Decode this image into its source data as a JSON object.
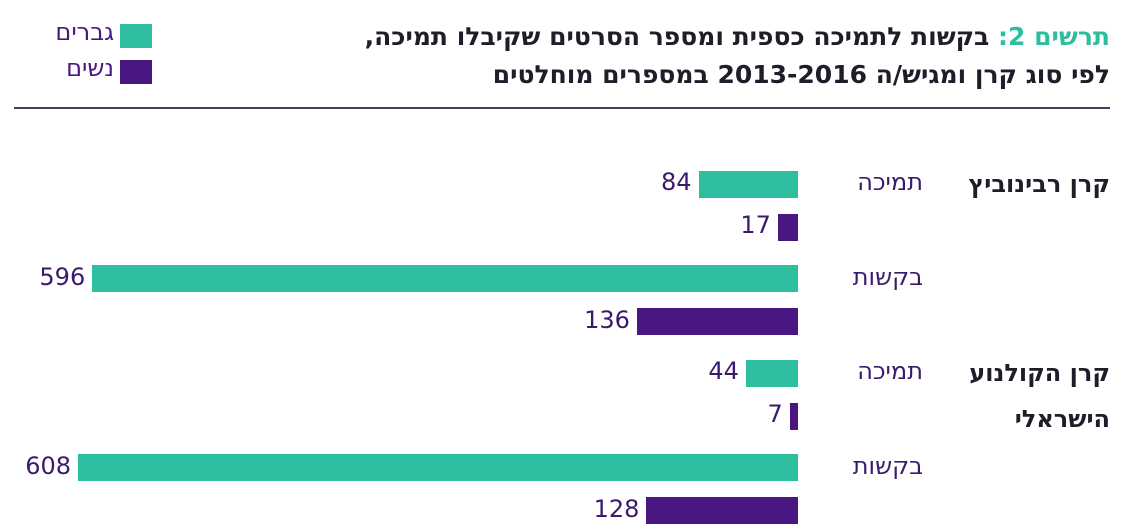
{
  "chart_data": {
    "type": "bar",
    "orientation": "horizontal",
    "figure_label": "תרשים 2:",
    "title_lines": [
      "בקשות לתמיכה כספית ומספר הסרטים שקיבלו תמיכה,",
      "לפי סוג קרן ומגיש/ה 2013-2016 במספרים מוחלטים"
    ],
    "group_names": [
      "קרן רבינוביץ",
      "קרן הקולנוע הישראלי"
    ],
    "categories": [
      "תמיכה",
      "בקשות",
      "תמיכה",
      "בקשות"
    ],
    "series": [
      {
        "name": "גברים",
        "color": "#2dbd9f",
        "values": [
          84,
          596,
          44,
          608
        ]
      },
      {
        "name": "נשים",
        "color": "#4a1682",
        "values": [
          17,
          136,
          7,
          128
        ]
      }
    ],
    "legend": "top-left"
  }
}
